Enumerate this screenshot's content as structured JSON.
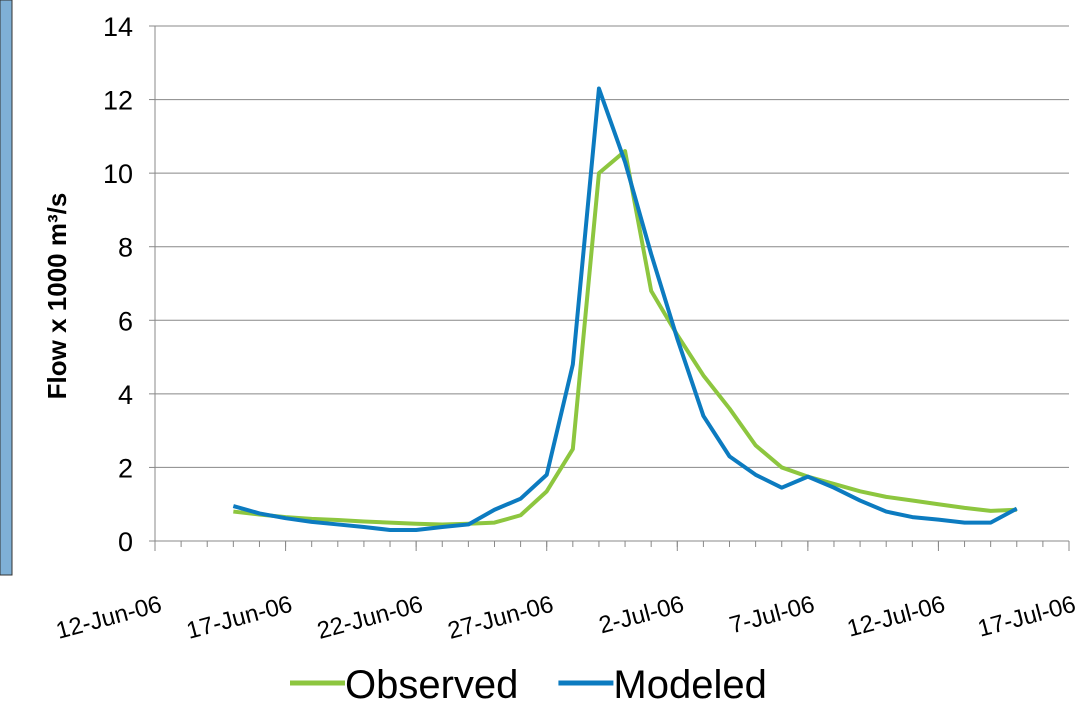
{
  "chart_data": {
    "type": "line",
    "y_label": "Flow x 1000 m³/s",
    "x": [
      "2006-06-15",
      "2006-06-16",
      "2006-06-17",
      "2006-06-18",
      "2006-06-19",
      "2006-06-20",
      "2006-06-21",
      "2006-06-22",
      "2006-06-23",
      "2006-06-24",
      "2006-06-25",
      "2006-06-26",
      "2006-06-27",
      "2006-06-28",
      "2006-06-29",
      "2006-06-30",
      "2006-07-01",
      "2006-07-02",
      "2006-07-03",
      "2006-07-04",
      "2006-07-05",
      "2006-07-06",
      "2006-07-07",
      "2006-07-08",
      "2006-07-09",
      "2006-07-10",
      "2006-07-11",
      "2006-07-12",
      "2006-07-13",
      "2006-07-14",
      "2006-07-15"
    ],
    "series": [
      {
        "name": "Observed",
        "color": "#8dc63f",
        "values": [
          0.8,
          0.72,
          0.65,
          0.6,
          0.57,
          0.53,
          0.5,
          0.47,
          0.45,
          0.47,
          0.5,
          0.7,
          1.35,
          2.5,
          10.0,
          10.6,
          6.8,
          5.6,
          4.5,
          3.6,
          2.6,
          2.0,
          1.75,
          1.55,
          1.35,
          1.2,
          1.1,
          1.0,
          0.9,
          0.82,
          0.85
        ]
      },
      {
        "name": "Modeled",
        "color": "#0c7bc0",
        "values": [
          0.95,
          0.75,
          0.62,
          0.52,
          0.45,
          0.38,
          0.3,
          0.3,
          0.38,
          0.45,
          0.85,
          1.15,
          1.8,
          4.8,
          12.3,
          10.3,
          7.8,
          5.5,
          3.4,
          2.3,
          1.8,
          1.45,
          1.75,
          1.45,
          1.1,
          0.8,
          0.65,
          0.58,
          0.5,
          0.5,
          0.88
        ]
      }
    ],
    "xlim": [
      "2006-06-12",
      "2006-07-17"
    ],
    "xticks": [
      {
        "value": "2006-06-12",
        "label": "12-Jun-06"
      },
      {
        "value": "2006-06-17",
        "label": "17-Jun-06"
      },
      {
        "value": "2006-06-22",
        "label": "22-Jun-06"
      },
      {
        "value": "2006-06-27",
        "label": "27-Jun-06"
      },
      {
        "value": "2006-07-02",
        "label": "2-Jul-06"
      },
      {
        "value": "2006-07-07",
        "label": "7-Jul-06"
      },
      {
        "value": "2006-07-12",
        "label": "12-Jul-06"
      },
      {
        "value": "2006-07-17",
        "label": "17-Jul-06"
      }
    ],
    "ylim": [
      0,
      14
    ],
    "yticks": [
      0,
      2,
      4,
      6,
      8,
      10,
      12,
      14
    ],
    "grid": true
  }
}
